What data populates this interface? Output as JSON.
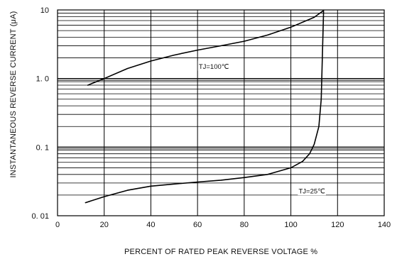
{
  "chart_data": {
    "type": "line",
    "xlabel": "PERCENT OF RATED PEAK REVERSE VOLTAGE %",
    "ylabel": "INSTANTANEOUS REVERSE CURRENT  (μA)",
    "x_scale": "linear",
    "y_scale": "log",
    "xlim": [
      0,
      140
    ],
    "ylim": [
      0.01,
      10
    ],
    "x_ticks": [
      0,
      20,
      40,
      60,
      80,
      100,
      120,
      140
    ],
    "x_tick_labels": [
      "0",
      "20",
      "40",
      "60",
      "80",
      "100",
      "120",
      "140"
    ],
    "y_ticks": [
      0.01,
      0.1,
      1,
      10
    ],
    "y_tick_labels": [
      "0. 01",
      "0. 1",
      "1. 0",
      "10"
    ],
    "grid": true,
    "series": [
      {
        "name": "TJ=100℃",
        "x": [
          13,
          20,
          30,
          40,
          50,
          60,
          70,
          80,
          90,
          100,
          110,
          114
        ],
        "y": [
          0.8,
          1.0,
          1.4,
          1.8,
          2.2,
          2.6,
          3.0,
          3.5,
          4.3,
          5.6,
          7.8,
          9.8
        ]
      },
      {
        "name": "TJ=25℃",
        "x": [
          12,
          20,
          30,
          40,
          50,
          60,
          70,
          80,
          90,
          100,
          105,
          108,
          110,
          112,
          113,
          114
        ],
        "y": [
          0.0155,
          0.019,
          0.0235,
          0.027,
          0.029,
          0.031,
          0.033,
          0.036,
          0.04,
          0.05,
          0.062,
          0.08,
          0.11,
          0.2,
          0.5,
          9.5
        ]
      }
    ],
    "annotations": [
      {
        "text": "TJ=100℃",
        "x": 67,
        "y": 1.5
      },
      {
        "text": "TJ=25℃",
        "x": 109,
        "y": 0.023
      }
    ]
  }
}
